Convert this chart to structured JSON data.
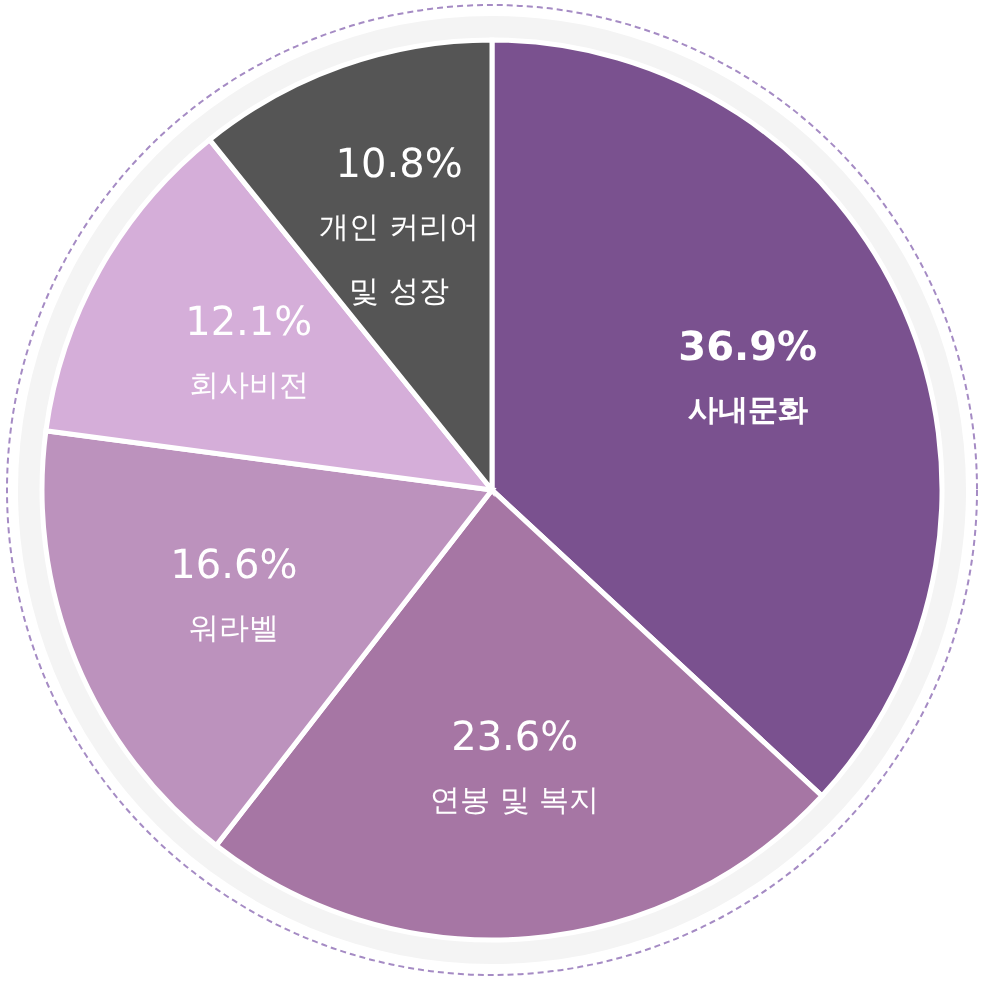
{
  "chart_data": {
    "type": "pie",
    "categories": [
      "사내문화",
      "연봉 및 복지",
      "워라벨",
      "회사비전",
      "개인 커리어 및 성장"
    ],
    "values": [
      36.9,
      23.6,
      16.6,
      12.1,
      10.8
    ],
    "colors": [
      "#7a518f",
      "#a676a4",
      "#bc92bd",
      "#d5aed9",
      "#555555"
    ],
    "value_labels": [
      "36.9%",
      "23.6%",
      "16.6%",
      "12.1%",
      "10.8%"
    ]
  }
}
